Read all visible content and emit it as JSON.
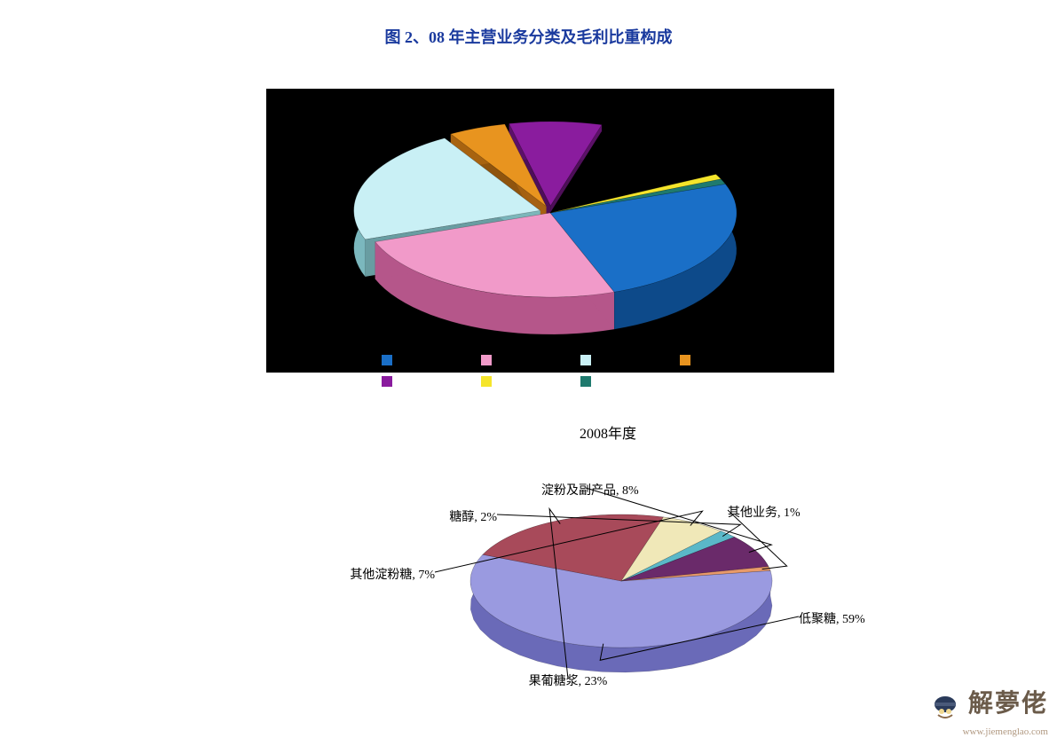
{
  "title": "图 2、08 年主营业务分类及毛利比重构成",
  "chart1": {
    "type": "pie-3d",
    "background_color": "#000000",
    "slices": [
      {
        "label": "",
        "value": 25,
        "color": "#1a6fc7",
        "side_color": "#0d4a8a"
      },
      {
        "label": "",
        "value": 25,
        "color": "#f19ac9",
        "side_color": "#b5568a"
      },
      {
        "label": "",
        "value": 22,
        "color": "#c9f0f5",
        "side_color": "#7bb8be"
      },
      {
        "label": "",
        "value": 5,
        "color": "#e8941f",
        "side_color": "#a86310"
      },
      {
        "label": "",
        "value": 8,
        "color": "#8a1c9e",
        "side_color": "#5c1268"
      },
      {
        "label": "",
        "value": 13,
        "color": "#000000",
        "side_color": "#000000"
      },
      {
        "label": "",
        "value": 1,
        "color": "#f5e52b",
        "side_color": "#b8a81a"
      },
      {
        "label": "",
        "value": 1,
        "color": "#1f7a6e",
        "side_color": "#14524a"
      }
    ],
    "legend_colors_row1": [
      "#1a6fc7",
      "#f19ac9",
      "#c9f0f5",
      "#e8941f"
    ],
    "legend_colors_row2": [
      "#8a1c9e",
      "#f5e52b",
      "#1f7a6e"
    ]
  },
  "chart2": {
    "type": "pie-3d",
    "title": "2008年度",
    "background_color": "#ffffff",
    "slices": [
      {
        "label": "低聚糖, 59%",
        "value": 59,
        "color": "#9a9ae0",
        "side_color": "#6a6ab8"
      },
      {
        "label": "果葡糖浆, 23%",
        "value": 23,
        "color": "#a84a5a",
        "side_color": "#7a3240"
      },
      {
        "label": "其他淀粉糖, 7%",
        "value": 7,
        "color": "#f0e8b8",
        "side_color": "#c8c090"
      },
      {
        "label": "糖醇, 2%",
        "value": 2,
        "color": "#5ab8c8",
        "side_color": "#3a8a98"
      },
      {
        "label": "淀粉及副产品, 8%",
        "value": 8,
        "color": "#6a2a6a",
        "side_color": "#4a1a4a"
      },
      {
        "label": "其他业务, 1%",
        "value": 1,
        "color": "#e89a6a",
        "side_color": "#c07a4a"
      }
    ]
  },
  "watermark": {
    "text": "解夢佬",
    "url": "www.jiemenglao.com"
  }
}
